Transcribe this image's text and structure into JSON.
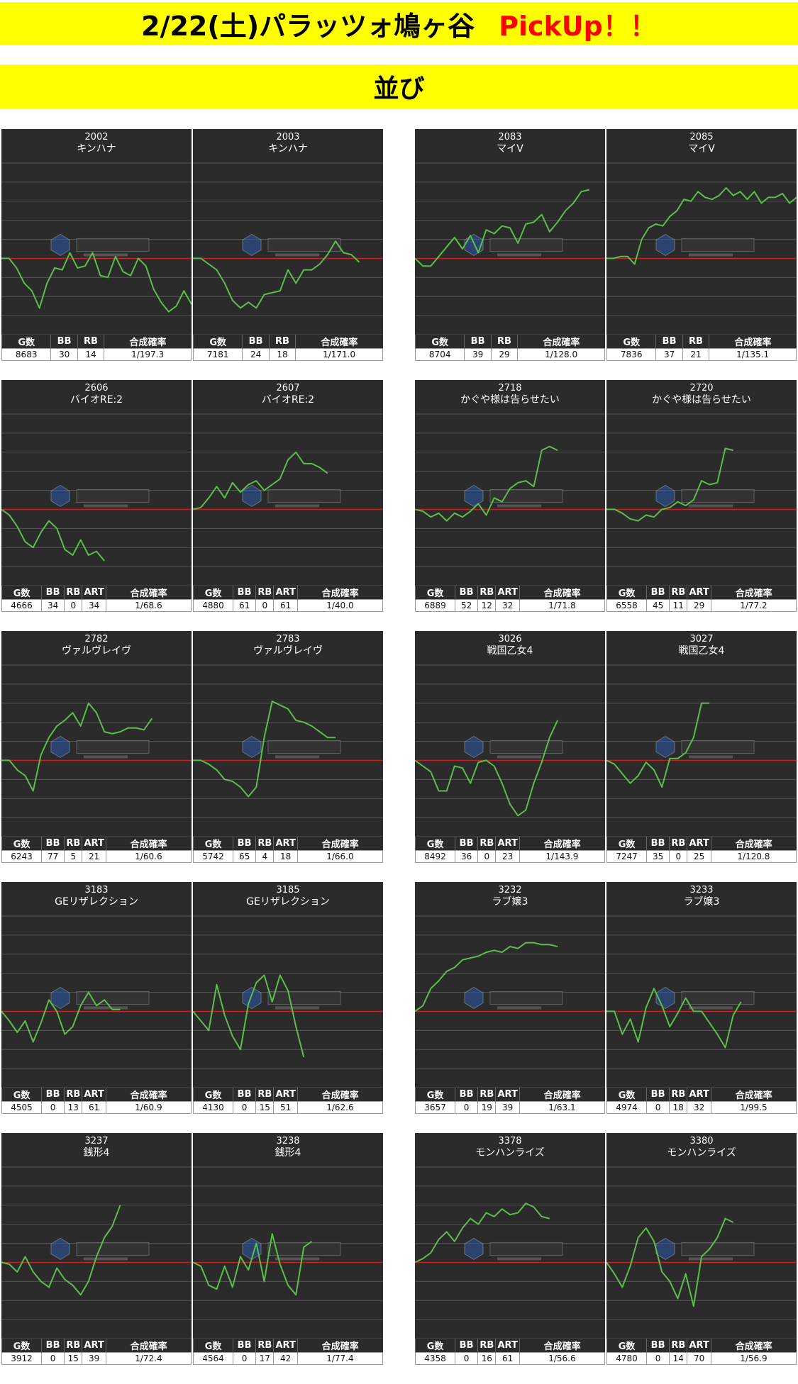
{
  "header": {
    "title": "2/22(土)パラッツォ鳩ヶ谷",
    "pickup": "PickUp！！",
    "subtitle": "並び"
  },
  "colors": {
    "banner": "#ffff00",
    "line": "#5cbd4c",
    "baseline": "#c62020",
    "chart_bg": "#2b2b2b",
    "pickup": "#ff0000"
  },
  "chart_data": [
    {
      "type": "line",
      "machine_no": "2002",
      "machine_name": "キンハナ",
      "headers": [
        "G数",
        "BB",
        "RB",
        "合成確率"
      ],
      "stats": [
        "8683",
        "30",
        "14",
        "1/197.3"
      ],
      "ylim": [
        -4,
        5
      ],
      "values": [
        0,
        0,
        -0.5,
        -1.3,
        -1.7,
        -2.6,
        -1.3,
        -0.5,
        -0.6,
        0.3,
        -0.5,
        -0.4,
        0.3,
        -0.9,
        -1,
        0.1,
        -0.7,
        -0.9,
        0,
        -0.4,
        -1.6,
        -2.3,
        -2.8,
        -2.5,
        -1.7,
        -2.4
      ]
    },
    {
      "type": "line",
      "machine_no": "2003",
      "machine_name": "キンハナ",
      "headers": [
        "G数",
        "BB",
        "RB",
        "合成確率"
      ],
      "stats": [
        "7181",
        "24",
        "18",
        "1/171.0"
      ],
      "ylim": [
        -4,
        5
      ],
      "values": [
        0,
        0,
        -0.3,
        -0.6,
        -1.3,
        -2.2,
        -2.6,
        -2.3,
        -2.6,
        -1.9,
        -1.8,
        -1.7,
        -0.6,
        -1.3,
        -0.6,
        -0.6,
        -0.3,
        0.2,
        0.9,
        0.3,
        0.2,
        -0.2
      ]
    },
    {
      "type": "line",
      "machine_no": "2083",
      "machine_name": "マイV",
      "headers": [
        "G数",
        "BB",
        "RB",
        "合成確率"
      ],
      "stats": [
        "8704",
        "39",
        "29",
        "1/128.0"
      ],
      "ylim": [
        -4,
        5
      ],
      "values": [
        0,
        -0.4,
        -0.4,
        0.1,
        0.6,
        1.1,
        0.5,
        1.2,
        0.3,
        1.5,
        1.3,
        1.7,
        1.6,
        0.8,
        1.8,
        1.9,
        2.3,
        1.4,
        1.9,
        2.5,
        2.9,
        3.5,
        3.6
      ]
    },
    {
      "type": "line",
      "machine_no": "2085",
      "machine_name": "マイV",
      "headers": [
        "G数",
        "BB",
        "RB",
        "合成確率"
      ],
      "stats": [
        "7836",
        "37",
        "21",
        "1/135.1"
      ],
      "ylim": [
        -4,
        5
      ],
      "values": [
        0,
        0,
        0.1,
        0.1,
        -0.3,
        1,
        1.6,
        1.8,
        1.7,
        2.2,
        2.5,
        3.1,
        3,
        3.5,
        3.2,
        3.1,
        3.3,
        3.7,
        3.3,
        3.5,
        3.1,
        3.5,
        2.9,
        3.2,
        3.2,
        3.4,
        2.9,
        3.2
      ]
    },
    {
      "type": "line",
      "machine_no": "2606",
      "machine_name": "バイオRE:2",
      "headers": [
        "G数",
        "BB",
        "RB",
        "ART",
        "合成確率"
      ],
      "stats": [
        "4666",
        "34",
        "0",
        "34",
        "1/68.6"
      ],
      "ylim": [
        -4,
        5
      ],
      "values": [
        0,
        -0.3,
        -0.9,
        -1.7,
        -2,
        -1.2,
        -0.6,
        -1,
        -2.1,
        -2.4,
        -1.6,
        -2.4,
        -2.2,
        -2.7
      ]
    },
    {
      "type": "line",
      "machine_no": "2607",
      "machine_name": "バイオRE:2",
      "headers": [
        "G数",
        "BB",
        "RB",
        "ART",
        "合成確率"
      ],
      "stats": [
        "4880",
        "61",
        "0",
        "61",
        "1/40.0"
      ],
      "ylim": [
        -4,
        5
      ],
      "values": [
        0,
        0.1,
        0.6,
        1.2,
        0.6,
        1.4,
        0.9,
        1.3,
        1.5,
        1,
        1.3,
        1.6,
        2.6,
        3,
        2.4,
        2.4,
        2.2,
        1.9
      ]
    },
    {
      "type": "line",
      "machine_no": "2718",
      "machine_name": "かぐや様は告らせたい",
      "headers": [
        "G数",
        "BB",
        "RB",
        "ART",
        "合成確率"
      ],
      "stats": [
        "6889",
        "52",
        "12",
        "32",
        "1/71.8"
      ],
      "ylim": [
        -4,
        5
      ],
      "values": [
        0,
        -0.1,
        -0.4,
        -0.2,
        -0.6,
        -0.2,
        -0.4,
        -0.1,
        0.3,
        -0.3,
        0.6,
        0.4,
        1.1,
        1.4,
        1.5,
        1.2,
        3.1,
        3.3,
        3.1
      ]
    },
    {
      "type": "line",
      "machine_no": "2720",
      "machine_name": "かぐや様は告らせたい",
      "headers": [
        "G数",
        "BB",
        "RB",
        "ART",
        "合成確率"
      ],
      "stats": [
        "6558",
        "45",
        "11",
        "29",
        "1/77.2"
      ],
      "ylim": [
        -4,
        5
      ],
      "values": [
        0,
        0,
        -0.2,
        -0.5,
        -0.6,
        -0.3,
        -0.4,
        0,
        0.1,
        0.4,
        0.2,
        0.5,
        1.5,
        1.3,
        1.4,
        3.2,
        3.1
      ]
    },
    {
      "type": "line",
      "machine_no": "2782",
      "machine_name": "ヴァルヴレイヴ",
      "headers": [
        "G数",
        "BB",
        "RB",
        "ART",
        "合成確率"
      ],
      "stats": [
        "6243",
        "77",
        "5",
        "21",
        "1/60.6"
      ],
      "ylim": [
        -4,
        5
      ],
      "values": [
        0,
        0,
        -0.5,
        -0.8,
        -1.6,
        0.3,
        1.2,
        1.8,
        2.1,
        2.5,
        1.8,
        3,
        2.5,
        1.5,
        1.4,
        1.5,
        1.7,
        1.7,
        1.6,
        2.2
      ]
    },
    {
      "type": "line",
      "machine_no": "2783",
      "machine_name": "ヴァルヴレイヴ",
      "headers": [
        "G数",
        "BB",
        "RB",
        "ART",
        "合成確率"
      ],
      "stats": [
        "5742",
        "65",
        "4",
        "18",
        "1/66.0"
      ],
      "ylim": [
        -4,
        5
      ],
      "values": [
        0,
        0,
        -0.2,
        -0.5,
        -1,
        -1.1,
        -1.4,
        -1.9,
        -1.4,
        1.2,
        3.1,
        2.9,
        2.7,
        2.1,
        2,
        1.8,
        1.5,
        1.2,
        1.2
      ]
    },
    {
      "type": "line",
      "machine_no": "3026",
      "machine_name": "戦国乙女4",
      "headers": [
        "G数",
        "BB",
        "RB",
        "ART",
        "合成確率"
      ],
      "stats": [
        "8492",
        "36",
        "0",
        "23",
        "1/143.9"
      ],
      "ylim": [
        -4,
        5
      ],
      "values": [
        0,
        -0.3,
        -0.6,
        -1.6,
        -1.6,
        -0.3,
        -0.4,
        -1.2,
        -0.1,
        0,
        -0.3,
        -1.2,
        -2.3,
        -2.9,
        -2.6,
        -1.2,
        -0.1,
        1.2,
        2.1
      ]
    },
    {
      "type": "line",
      "machine_no": "3027",
      "machine_name": "戦国乙女4",
      "headers": [
        "G数",
        "BB",
        "RB",
        "ART",
        "合成確率"
      ],
      "stats": [
        "7247",
        "35",
        "0",
        "25",
        "1/120.8"
      ],
      "ylim": [
        -4,
        5
      ],
      "values": [
        0,
        -0.2,
        -0.7,
        -1.2,
        -0.8,
        -0.1,
        -0.5,
        -1.4,
        0.1,
        0.1,
        0.4,
        1.2,
        3,
        3
      ]
    },
    {
      "type": "line",
      "machine_no": "3183",
      "machine_name": "GEリザレクション",
      "headers": [
        "G数",
        "BB",
        "RB",
        "ART",
        "合成確率"
      ],
      "stats": [
        "4505",
        "0",
        "13",
        "61",
        "1/60.9"
      ],
      "ylim": [
        -4,
        5
      ],
      "values": [
        0,
        -0.5,
        -1.1,
        -0.5,
        -1.6,
        -0.6,
        0.6,
        0,
        -1.2,
        -0.8,
        0.3,
        1,
        0.3,
        0.6,
        0.1,
        0.1
      ]
    },
    {
      "type": "line",
      "machine_no": "3185",
      "machine_name": "GEリザレクション",
      "headers": [
        "G数",
        "BB",
        "RB",
        "ART",
        "合成確率"
      ],
      "stats": [
        "4130",
        "0",
        "15",
        "51",
        "1/62.6"
      ],
      "ylim": [
        -4,
        5
      ],
      "values": [
        0,
        -0.5,
        -1,
        1.4,
        -0.2,
        -1.3,
        -2,
        0.4,
        1.5,
        1.9,
        0.5,
        1.9,
        1.1,
        -0.8,
        -2.4
      ]
    },
    {
      "type": "line",
      "machine_no": "3232",
      "machine_name": "ラブ嬢3",
      "headers": [
        "G数",
        "BB",
        "RB",
        "ART",
        "合成確率"
      ],
      "stats": [
        "3657",
        "0",
        "19",
        "39",
        "1/63.1"
      ],
      "ylim": [
        -4,
        5
      ],
      "values": [
        0,
        0.3,
        1.2,
        1.6,
        2.1,
        2.3,
        2.7,
        2.8,
        2.9,
        3.1,
        3.2,
        3.1,
        3.4,
        3.3,
        3.6,
        3.6,
        3.5,
        3.5,
        3.4
      ]
    },
    {
      "type": "line",
      "machine_no": "3233",
      "machine_name": "ラブ嬢3",
      "headers": [
        "G数",
        "BB",
        "RB",
        "ART",
        "合成確率"
      ],
      "stats": [
        "4974",
        "0",
        "18",
        "32",
        "1/99.5"
      ],
      "ylim": [
        -4,
        5
      ],
      "values": [
        0,
        0,
        -1.2,
        -0.4,
        -1.6,
        0.2,
        1.2,
        0.3,
        -0.8,
        -0.1,
        0.7,
        0,
        0,
        -0.6,
        -1.2,
        -1.9,
        -0.2,
        0.5
      ]
    },
    {
      "type": "line",
      "machine_no": "3237",
      "machine_name": "銭形4",
      "headers": [
        "G数",
        "BB",
        "RB",
        "ART",
        "合成確率"
      ],
      "stats": [
        "3912",
        "0",
        "15",
        "39",
        "1/72.4"
      ],
      "ylim": [
        -4,
        5
      ],
      "values": [
        0,
        -0.1,
        -0.5,
        0.3,
        -0.5,
        -1,
        -1.3,
        -0.3,
        -0.9,
        -1.2,
        -1.7,
        -1,
        0.3,
        1.3,
        1.9,
        3
      ]
    },
    {
      "type": "line",
      "machine_no": "3238",
      "machine_name": "銭形4",
      "headers": [
        "G数",
        "BB",
        "RB",
        "ART",
        "合成確率"
      ],
      "stats": [
        "4564",
        "0",
        "17",
        "42",
        "1/77.4"
      ],
      "ylim": [
        -4,
        5
      ],
      "values": [
        0,
        -0.2,
        -1.2,
        -1.4,
        -0.2,
        -1.3,
        0.3,
        -0.4,
        1,
        -1,
        1.5,
        -0.1,
        -1.2,
        -1.7,
        0.8,
        1.1
      ]
    },
    {
      "type": "line",
      "machine_no": "3378",
      "machine_name": "モンハンライズ",
      "headers": [
        "G数",
        "BB",
        "RB",
        "ART",
        "合成確率"
      ],
      "stats": [
        "4358",
        "0",
        "16",
        "61",
        "1/56.6"
      ],
      "ylim": [
        -4,
        5
      ],
      "values": [
        0,
        0.2,
        0.5,
        1.2,
        1.6,
        1.1,
        1.8,
        2.3,
        2,
        2.6,
        2.4,
        2.8,
        2.5,
        2.6,
        3.1,
        2.9,
        2.4,
        2.3
      ]
    },
    {
      "type": "line",
      "machine_no": "3380",
      "machine_name": "モンハンライズ",
      "headers": [
        "G数",
        "BB",
        "RB",
        "ART",
        "合成確率"
      ],
      "stats": [
        "4780",
        "0",
        "14",
        "70",
        "1/56.9"
      ],
      "ylim": [
        -4,
        5
      ],
      "values": [
        0,
        -0.6,
        -1.3,
        -0.2,
        1.3,
        1.8,
        1.1,
        -0.5,
        -1,
        -1.9,
        -0.6,
        -2.3,
        0.3,
        0.7,
        1.3,
        2.3,
        2.1
      ]
    }
  ]
}
